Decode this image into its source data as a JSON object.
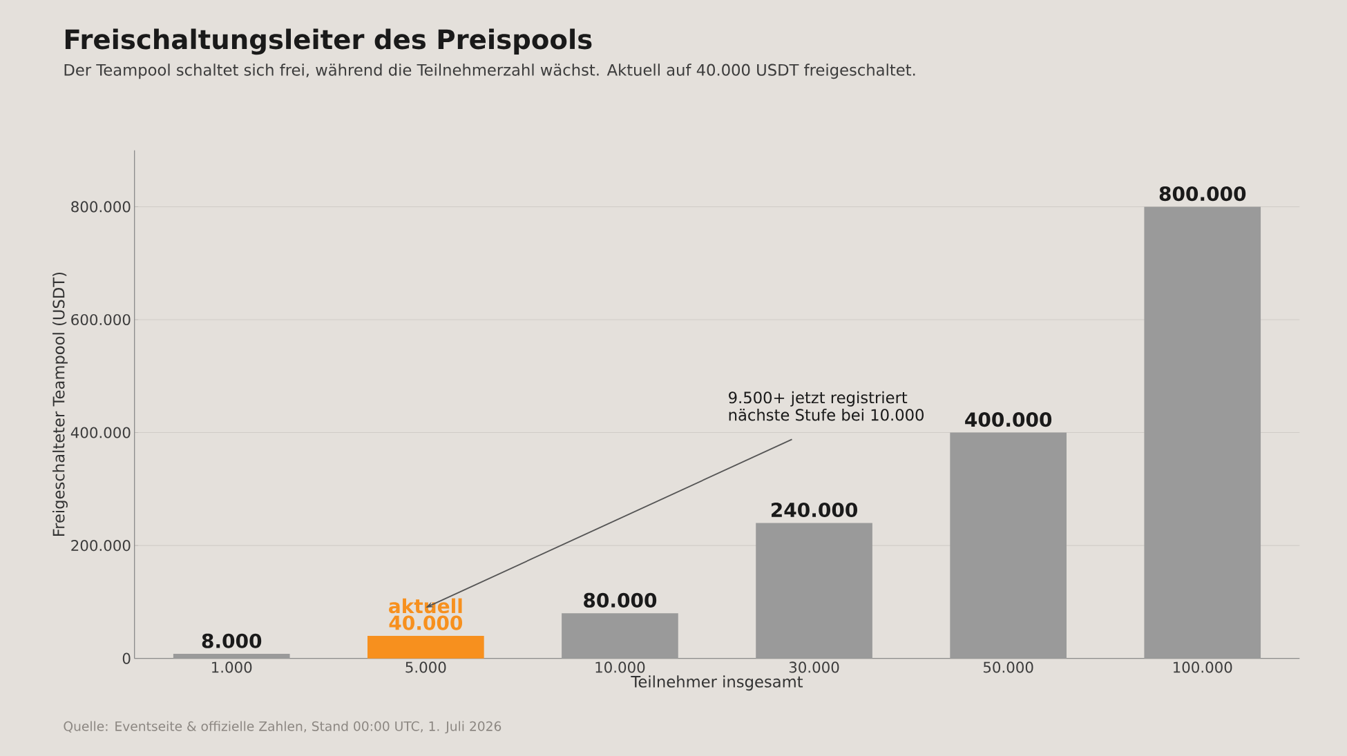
{
  "chart_data": {
    "type": "bar",
    "title": "Freischaltungsleiter des Preispools",
    "subtitle": "Der Teampool schaltet sich frei, während die Teilnehmerzahl wächst. Aktuell auf 40.000 USDT freigeschaltet.",
    "xlabel": "Teilnehmer insgesamt",
    "ylabel": "Freigeschalteter Teampool (USDT)",
    "categories": [
      "1.000",
      "5.000",
      "10.000",
      "30.000",
      "50.000",
      "100.000"
    ],
    "values": [
      8000,
      40000,
      80000,
      240000,
      400000,
      800000
    ],
    "colors": [
      "#9a9a9a",
      "#f7901e",
      "#9a9a9a",
      "#9a9a9a",
      "#9a9a9a",
      "#9a9a9a"
    ],
    "value_labels": [
      "8.000",
      "40.000",
      "80.000",
      "240.000",
      "400.000",
      "800.000"
    ],
    "ylim": [
      0,
      900000
    ],
    "yticks": [
      0,
      {
        "value": 200000,
        "label": "200.000"
      },
      {
        "value": 400000,
        "label": "400.000"
      },
      {
        "value": 600000,
        "label": "600.000"
      },
      {
        "value": 800000,
        "label": "800.000"
      }
    ],
    "grid": "y",
    "annotations": [
      {
        "text": "aktuell",
        "x": "5.000",
        "y": 40000
      },
      "9.500+ jetzt registriert",
      "nächste Stufe bei 10.000",
      "Quelle: Eventseite & offizielle Zahlen, Stand 00:00 UTC, 1. Juli 2026"
    ]
  }
}
